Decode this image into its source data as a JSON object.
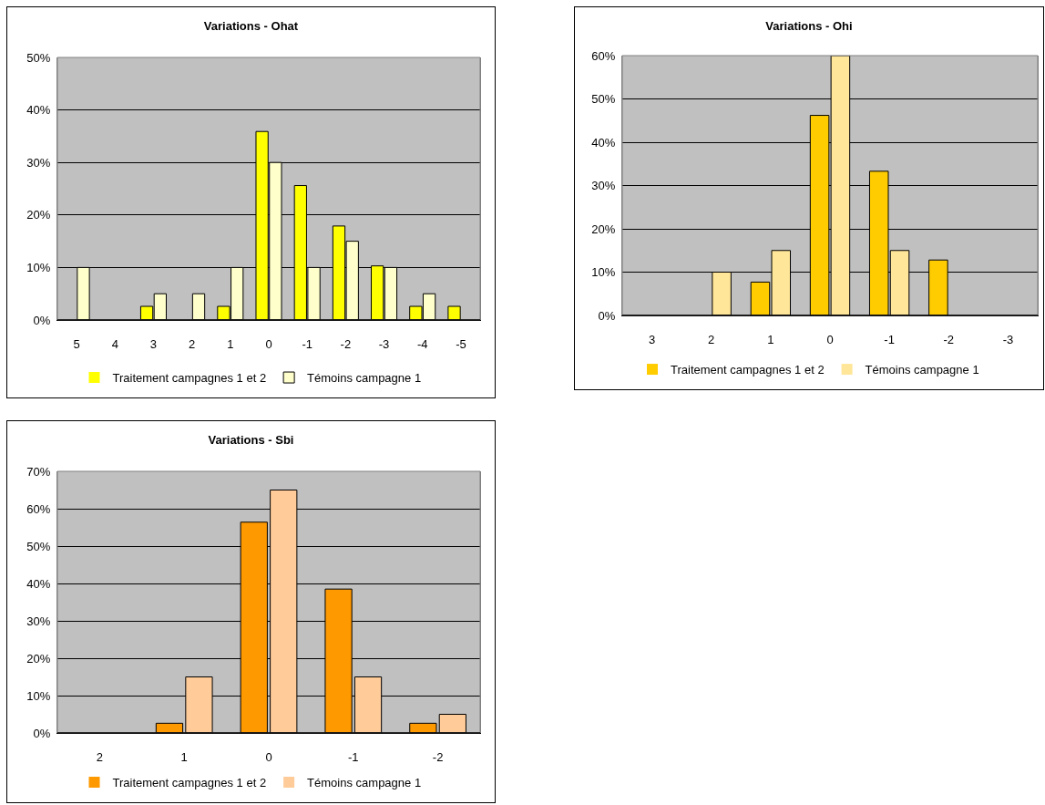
{
  "chart_data": [
    {
      "type": "bar",
      "title": "Variations - Ohat",
      "categories": [
        "5",
        "4",
        "3",
        "2",
        "1",
        "0",
        "-1",
        "-2",
        "-3",
        "-4",
        "-5"
      ],
      "series": [
        {
          "name": "Traitement campagnes 1 et 2",
          "color": "#ffff00",
          "values": [
            0,
            0,
            2.6,
            0,
            2.6,
            35.9,
            25.6,
            17.9,
            10.3,
            2.6,
            2.6
          ]
        },
        {
          "name": "Témoins campagne 1",
          "color": "#ffffcc",
          "values": [
            10,
            0,
            5,
            5,
            10,
            30,
            10,
            15,
            10,
            5,
            0
          ]
        }
      ],
      "ylim": [
        0,
        50
      ],
      "yticks": [
        {
          "value": 0,
          "label": "0%"
        },
        {
          "value": 10,
          "label": "10%"
        },
        {
          "value": 20,
          "label": "20%"
        },
        {
          "value": 30,
          "label": "30%"
        },
        {
          "value": 40,
          "label": "40%"
        },
        {
          "value": 50,
          "label": "50%"
        }
      ],
      "grid": "y",
      "legend": "bottom"
    },
    {
      "type": "bar",
      "title": "Variations - Ohi",
      "categories": [
        "3",
        "2",
        "1",
        "0",
        "-1",
        "-2",
        "-3"
      ],
      "series": [
        {
          "name": "Traitement campagnes 1 et 2",
          "color": "#ffcc00",
          "values": [
            0,
            0,
            7.7,
            46.2,
            33.3,
            12.8,
            0
          ]
        },
        {
          "name": "Témoins campagne 1",
          "color": "#ffe699",
          "values": [
            0,
            10,
            15,
            60,
            15,
            0,
            0
          ]
        }
      ],
      "ylim": [
        0,
        60
      ],
      "yticks": [
        {
          "value": 0,
          "label": "0%"
        },
        {
          "value": 10,
          "label": "10%"
        },
        {
          "value": 20,
          "label": "20%"
        },
        {
          "value": 30,
          "label": "30%"
        },
        {
          "value": 40,
          "label": "40%"
        },
        {
          "value": 50,
          "label": "50%"
        },
        {
          "value": 60,
          "label": "60%"
        }
      ],
      "grid": "y",
      "legend": "bottom"
    },
    {
      "type": "bar",
      "title": "Variations - Sbi",
      "categories": [
        "2",
        "1",
        "0",
        "-1",
        "-2"
      ],
      "series": [
        {
          "name": "Traitement campagnes 1 et 2",
          "color": "#ff9900",
          "values": [
            0,
            2.6,
            56.4,
            38.5,
            2.6
          ]
        },
        {
          "name": "Témoins campagne 1",
          "color": "#ffcc99",
          "values": [
            0,
            15,
            65,
            15,
            5
          ]
        }
      ],
      "ylim": [
        0,
        70
      ],
      "yticks": [
        {
          "value": 0,
          "label": "0%"
        },
        {
          "value": 10,
          "label": "10%"
        },
        {
          "value": 20,
          "label": "20%"
        },
        {
          "value": 30,
          "label": "30%"
        },
        {
          "value": 40,
          "label": "40%"
        },
        {
          "value": 50,
          "label": "50%"
        },
        {
          "value": 60,
          "label": "60%"
        },
        {
          "value": 70,
          "label": "70%"
        }
      ],
      "grid": "y",
      "legend": "bottom"
    }
  ]
}
